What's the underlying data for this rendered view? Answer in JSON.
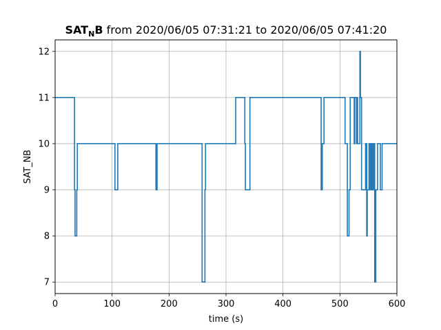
{
  "chart_data": {
    "type": "line",
    "title": {
      "main": "SAT",
      "sub": "N",
      "bold_tail": "B",
      "rest": " from 2020/06/05 07:31:21 to 2020/06/05 07:41:20"
    },
    "xlabel": "time (s)",
    "ylabel": "SAT_NB",
    "xlim": [
      0,
      600
    ],
    "ylim": [
      6.75,
      12.25
    ],
    "xticks": [
      0,
      100,
      200,
      300,
      400,
      500,
      600
    ],
    "yticks": [
      7,
      8,
      9,
      10,
      11,
      12
    ],
    "grid": true,
    "line_style": "step",
    "series": [
      {
        "color": "#1f77b4",
        "points": [
          [
            0,
            11
          ],
          [
            34,
            11
          ],
          [
            34,
            9
          ],
          [
            35,
            9
          ],
          [
            35,
            8
          ],
          [
            38,
            8
          ],
          [
            38,
            9
          ],
          [
            39,
            9
          ],
          [
            39,
            10
          ],
          [
            105,
            10
          ],
          [
            105,
            9
          ],
          [
            110,
            9
          ],
          [
            110,
            10
          ],
          [
            177,
            10
          ],
          [
            177,
            9
          ],
          [
            179,
            9
          ],
          [
            179,
            10
          ],
          [
            258,
            10
          ],
          [
            258,
            7
          ],
          [
            263,
            7
          ],
          [
            263,
            9
          ],
          [
            264,
            9
          ],
          [
            264,
            10
          ],
          [
            317,
            10
          ],
          [
            317,
            11
          ],
          [
            333,
            11
          ],
          [
            333,
            10
          ],
          [
            334,
            10
          ],
          [
            334,
            9
          ],
          [
            342,
            9
          ],
          [
            342,
            11
          ],
          [
            467,
            11
          ],
          [
            467,
            9
          ],
          [
            469,
            9
          ],
          [
            469,
            10
          ],
          [
            472,
            10
          ],
          [
            472,
            11
          ],
          [
            509,
            11
          ],
          [
            509,
            10
          ],
          [
            513,
            10
          ],
          [
            513,
            8
          ],
          [
            516,
            8
          ],
          [
            516,
            9
          ],
          [
            518,
            9
          ],
          [
            518,
            11
          ],
          [
            525,
            11
          ],
          [
            525,
            10
          ],
          [
            526,
            10
          ],
          [
            526,
            11
          ],
          [
            529,
            11
          ],
          [
            529,
            10
          ],
          [
            530,
            10
          ],
          [
            530,
            11
          ],
          [
            531,
            11
          ],
          [
            531,
            10
          ],
          [
            535,
            10
          ],
          [
            535,
            12
          ],
          [
            536,
            12
          ],
          [
            536,
            11
          ],
          [
            538,
            11
          ],
          [
            538,
            9
          ],
          [
            545,
            9
          ],
          [
            545,
            10
          ],
          [
            547,
            10
          ],
          [
            547,
            8
          ],
          [
            548,
            8
          ],
          [
            548,
            9
          ],
          [
            551,
            9
          ],
          [
            551,
            10
          ],
          [
            553,
            10
          ],
          [
            553,
            9
          ],
          [
            555,
            9
          ],
          [
            555,
            10
          ],
          [
            557,
            10
          ],
          [
            557,
            9
          ],
          [
            559,
            9
          ],
          [
            559,
            10
          ],
          [
            561,
            10
          ],
          [
            561,
            7
          ],
          [
            563,
            7
          ],
          [
            563,
            9
          ],
          [
            566,
            9
          ],
          [
            566,
            10
          ],
          [
            571,
            10
          ],
          [
            571,
            9
          ],
          [
            574,
            9
          ],
          [
            574,
            10
          ],
          [
            600,
            10
          ]
        ]
      }
    ]
  }
}
